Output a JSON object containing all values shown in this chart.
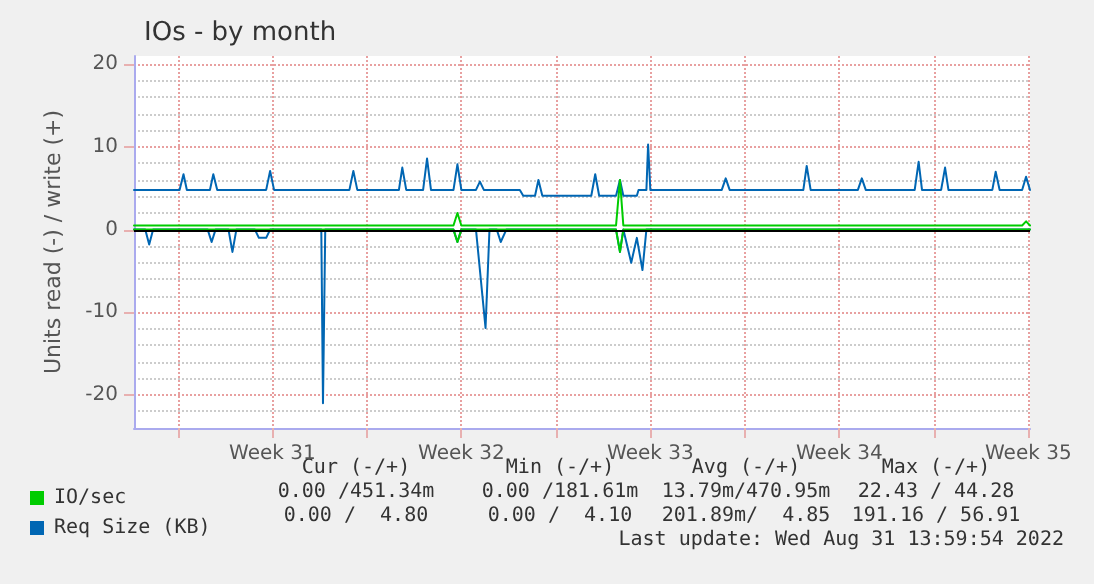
{
  "chart_data": {
    "type": "line",
    "title": "IOs - by month",
    "ylabel": "Units read (-) / write (+)",
    "xlim": [
      "2022-07-30T09:00",
      "2022-09-01T13:30"
    ],
    "xticks": [
      {
        "value": "2022-08-01",
        "label": null
      },
      {
        "value": "2022-08-04T12:00",
        "label": "Week 31"
      },
      {
        "value": "2022-08-08",
        "label": null
      },
      {
        "value": "2022-08-11T12:00",
        "label": "Week 32"
      },
      {
        "value": "2022-08-15",
        "label": null
      },
      {
        "value": "2022-08-18T12:00",
        "label": "Week 33"
      },
      {
        "value": "2022-08-22",
        "label": null
      },
      {
        "value": "2022-08-25T12:00",
        "label": "Week 34"
      },
      {
        "value": "2022-08-29",
        "label": null
      },
      {
        "value": "2022-09-01T12:00",
        "label": "Week 35"
      }
    ],
    "ylim": [
      -24,
      21
    ],
    "yticks": [
      -20,
      -10,
      0,
      10,
      20
    ],
    "grid": true,
    "legend": "bottom left",
    "marker": "none",
    "line_style": "solid",
    "ref_lines": [
      {
        "axis": "y",
        "value": 0,
        "color": "#000000"
      }
    ],
    "annotations": [
      "Cur (-/+)",
      "Min (-/+)",
      "Avg (-/+)",
      "Max (-/+)",
      "0.00 /451.34m",
      "0.00 /181.61m",
      "13.79m/470.95m",
      "22.43 / 44.28",
      "0.00 /  4.80",
      "0.00 /  4.10",
      "201.89m/  4.85",
      "191.16 / 56.91",
      "Last update: Wed Aug 31 13:59:54 2022"
    ],
    "series": [
      {
        "name": "IO/sec",
        "color": "#00cc00",
        "x": [
          "2022-07-30T09:00",
          "2022-08-11T05:00",
          "2022-08-11T08:30",
          "2022-08-11T12:00",
          "2022-08-17T05:30",
          "2022-08-17T09:00",
          "2022-08-17T12:00",
          "2022-09-01T06:30",
          "2022-09-01T10:00",
          "2022-09-01T13:30"
        ],
        "values": [
          0.5,
          0.5,
          2,
          0.5,
          0.5,
          6,
          0.5,
          0.5,
          1,
          0.5
        ]
      },
      {
        "color": "#00cc00",
        "x": [
          "2022-07-30T09:00",
          "2022-08-11T05:00",
          "2022-08-11T08:30",
          "2022-08-11T12:00",
          "2022-08-17T05:30",
          "2022-08-17T09:00",
          "2022-08-17T12:00",
          "2022-09-01T13:30"
        ],
        "values": [
          0,
          0,
          -1.5,
          0,
          0,
          -2.7,
          0,
          0
        ]
      },
      {
        "name": "Req Size (KB)",
        "color": "#0066b3",
        "x": [
          "2022-07-30T09:00",
          "2022-08-01T01:30",
          "2022-08-01T05:00",
          "2022-08-01T08:00",
          "2022-08-02T04:30",
          "2022-08-02T07:30",
          "2022-08-02T11:00",
          "2022-08-04T06:30",
          "2022-08-04T10:00",
          "2022-08-04T13:30",
          "2022-08-07T08:30",
          "2022-08-07T12:00",
          "2022-08-07T15:30",
          "2022-08-09T04:30",
          "2022-08-09T07:30",
          "2022-08-09T11:00",
          "2022-08-10T02:00",
          "2022-08-10T05:30",
          "2022-08-10T09:00",
          "2022-08-11T05:00",
          "2022-08-11T08:30",
          "2022-08-11T12:00",
          "2022-08-12T01:00",
          "2022-08-12T04:30",
          "2022-08-12T08:00",
          "2022-08-13T16:00",
          "2022-08-13T19:00",
          "2022-08-14T05:30",
          "2022-08-14T08:30",
          "2022-08-14T12:00",
          "2022-08-16T07:30",
          "2022-08-16T11:00",
          "2022-08-16T14:30",
          "2022-08-17T05:30",
          "2022-08-17T09:00",
          "2022-08-17T12:00",
          "2022-08-18T00:00",
          "2022-08-18T01:30",
          "2022-08-18T08:30",
          "2022-08-18T10:00",
          "2022-08-18T12:00",
          "2022-08-21T03:30",
          "2022-08-21T07:00",
          "2022-08-21T10:30",
          "2022-08-24T04:00",
          "2022-08-24T07:00",
          "2022-08-24T10:30",
          "2022-08-26T04:30",
          "2022-08-26T08:00",
          "2022-08-26T11:30",
          "2022-08-28T07:00",
          "2022-08-28T10:30",
          "2022-08-28T13:30",
          "2022-08-29T06:30",
          "2022-08-29T10:00",
          "2022-08-29T13:00",
          "2022-08-31T04:00",
          "2022-08-31T07:00",
          "2022-08-31T10:30",
          "2022-09-01T06:30",
          "2022-09-01T10:00",
          "2022-09-01T13:30"
        ],
        "values": [
          4.8,
          4.8,
          6.7,
          4.8,
          4.8,
          6.7,
          4.8,
          4.8,
          7.1,
          4.8,
          4.8,
          7.1,
          4.8,
          4.8,
          7.5,
          4.8,
          4.8,
          8.6,
          4.8,
          4.8,
          7.9,
          4.8,
          4.8,
          5.8,
          4.8,
          4.8,
          4.1,
          4.1,
          6,
          4.1,
          4.1,
          6.7,
          4.1,
          4.1,
          6,
          4.1,
          4.1,
          4.8,
          4.8,
          10.3,
          4.8,
          4.8,
          6.2,
          4.8,
          4.8,
          7.7,
          4.8,
          4.8,
          6.2,
          4.8,
          4.8,
          8.2,
          4.8,
          4.8,
          7.5,
          4.8,
          4.8,
          7,
          4.8,
          4.8,
          6.4,
          4.8
        ]
      },
      {
        "color": "#0066b3",
        "x": [
          "2022-07-30T09:00",
          "2022-07-30T19:00",
          "2022-07-30T22:30",
          "2022-07-31T02:00",
          "2022-08-02T02:30",
          "2022-08-02T06:00",
          "2022-08-02T09:30",
          "2022-08-02T21:00",
          "2022-08-03T00:30",
          "2022-08-03T04:00",
          "2022-08-03T20:30",
          "2022-08-04T00:00",
          "2022-08-04T06:30",
          "2022-08-04T10:00",
          "2022-08-06T07:30",
          "2022-08-06T09:00",
          "2022-08-06T11:00",
          "2022-08-11T05:00",
          "2022-08-11T08:30",
          "2022-08-11T12:00",
          "2022-08-12T01:00",
          "2022-08-12T04:30",
          "2022-08-12T09:30",
          "2022-08-12T13:00",
          "2022-08-12T19:30",
          "2022-08-12T23:00",
          "2022-08-13T04:00",
          "2022-08-17T05:30",
          "2022-08-17T09:00",
          "2022-08-17T12:00",
          "2022-08-17T19:00",
          "2022-08-18T00:00",
          "2022-08-18T05:00",
          "2022-08-18T08:30",
          "2022-09-01T13:30"
        ],
        "values": [
          0,
          0,
          -1.8,
          0,
          0,
          -1.5,
          0,
          0,
          -2.7,
          0,
          0,
          -1,
          -1,
          0,
          0,
          -21,
          0,
          0,
          -1.5,
          0,
          0,
          -4.9,
          -11.9,
          0,
          0,
          -1.5,
          0,
          0,
          -2.7,
          0,
          -4,
          -1,
          -4.9,
          0,
          0
        ]
      }
    ]
  }
}
